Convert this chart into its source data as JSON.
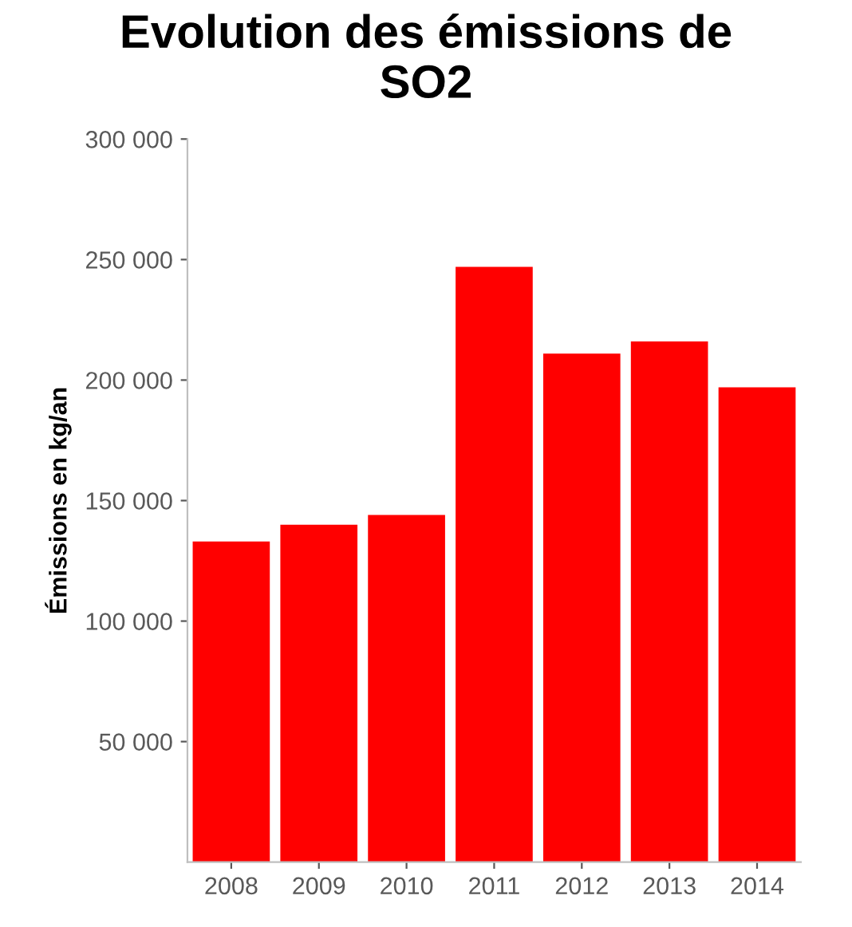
{
  "chart_data": {
    "type": "bar",
    "title": "Evolution des émissions de\nSO2",
    "ylabel": "Émissions en kg/an",
    "categories": [
      "2008",
      "2009",
      "2010",
      "2011",
      "2012",
      "2013",
      "2014"
    ],
    "values": [
      133000,
      140000,
      144000,
      247000,
      211000,
      216000,
      197000
    ],
    "color": "#ff0000",
    "ylim": [
      0,
      300000
    ],
    "yticks": [
      {
        "value": 50000,
        "label": "50 000"
      },
      {
        "value": 100000,
        "label": "100 000"
      },
      {
        "value": 150000,
        "label": "150 000"
      },
      {
        "value": 200000,
        "label": "200 000"
      },
      {
        "value": 250000,
        "label": "250 000"
      },
      {
        "value": 300000,
        "label": "300 000"
      }
    ],
    "grid": false,
    "legend": false
  }
}
